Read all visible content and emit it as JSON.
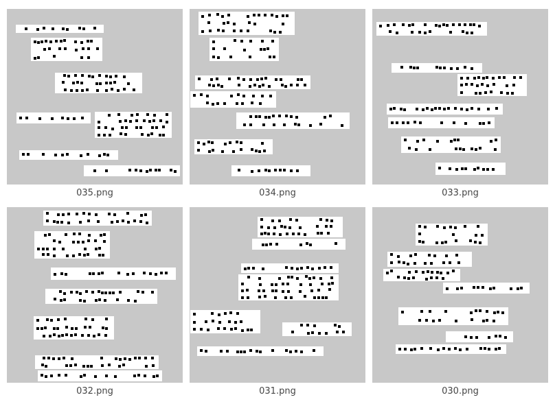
{
  "files": [
    {
      "name": "035.png",
      "thumbnail_icon": "scanned-text-strips-thumbnail"
    },
    {
      "name": "034.png",
      "thumbnail_icon": "scanned-text-strips-thumbnail"
    },
    {
      "name": "033.png",
      "thumbnail_icon": "scanned-text-strips-thumbnail"
    },
    {
      "name": "032.png",
      "thumbnail_icon": "scanned-text-strips-thumbnail"
    },
    {
      "name": "031.png",
      "thumbnail_icon": "scanned-text-strips-thumbnail"
    },
    {
      "name": "030.png",
      "thumbnail_icon": "scanned-text-strips-thumbnail"
    }
  ],
  "colors": {
    "thumbnail_bg": "#c8c8c8",
    "strip": "#ffffff",
    "ink": "#000000",
    "caption": "#444444"
  }
}
